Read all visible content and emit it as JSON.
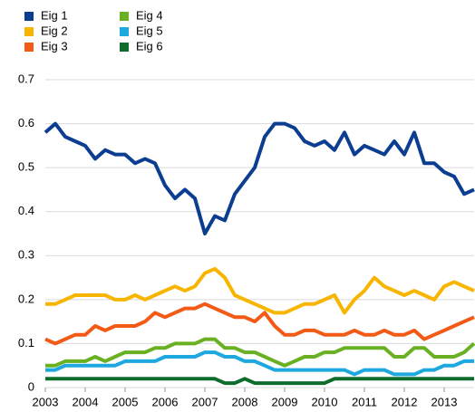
{
  "chart_data": {
    "type": "line",
    "x": [
      2003,
      2003.25,
      2003.5,
      2003.75,
      2004,
      2004.25,
      2004.5,
      2004.75,
      2005,
      2005.25,
      2005.5,
      2005.75,
      2006,
      2006.25,
      2006.5,
      2006.75,
      2007,
      2007.25,
      2007.5,
      2007.75,
      2008,
      2008.25,
      2008.5,
      2008.75,
      2009,
      2009.25,
      2009.5,
      2009.75,
      2010,
      2010.25,
      2010.5,
      2010.75,
      2011,
      2011.25,
      2011.5,
      2011.75,
      2012,
      2012.25,
      2012.5,
      2012.75,
      2013,
      2013.25,
      2013.5,
      2013.75
    ],
    "series": [
      {
        "name": "Eig 1",
        "color": "#0b3d91",
        "values": [
          0.58,
          0.6,
          0.57,
          0.56,
          0.55,
          0.52,
          0.54,
          0.53,
          0.53,
          0.51,
          0.52,
          0.51,
          0.46,
          0.43,
          0.45,
          0.43,
          0.35,
          0.39,
          0.38,
          0.44,
          0.47,
          0.5,
          0.57,
          0.6,
          0.6,
          0.59,
          0.56,
          0.55,
          0.56,
          0.54,
          0.58,
          0.53,
          0.55,
          0.54,
          0.53,
          0.56,
          0.53,
          0.58,
          0.51,
          0.51,
          0.49,
          0.48,
          0.44,
          0.45
        ]
      },
      {
        "name": "Eig 2",
        "color": "#f8b500",
        "values": [
          0.19,
          0.19,
          0.2,
          0.21,
          0.21,
          0.21,
          0.21,
          0.2,
          0.2,
          0.21,
          0.2,
          0.21,
          0.22,
          0.23,
          0.22,
          0.23,
          0.26,
          0.27,
          0.25,
          0.21,
          0.2,
          0.19,
          0.18,
          0.17,
          0.17,
          0.18,
          0.19,
          0.19,
          0.2,
          0.21,
          0.17,
          0.2,
          0.22,
          0.25,
          0.23,
          0.22,
          0.21,
          0.22,
          0.21,
          0.2,
          0.23,
          0.24,
          0.23,
          0.22
        ]
      },
      {
        "name": "Eig 3",
        "color": "#f25a16",
        "values": [
          0.11,
          0.1,
          0.11,
          0.12,
          0.12,
          0.14,
          0.13,
          0.14,
          0.14,
          0.14,
          0.15,
          0.17,
          0.16,
          0.17,
          0.18,
          0.18,
          0.19,
          0.18,
          0.17,
          0.16,
          0.16,
          0.15,
          0.17,
          0.14,
          0.12,
          0.12,
          0.13,
          0.13,
          0.12,
          0.12,
          0.12,
          0.13,
          0.12,
          0.12,
          0.13,
          0.12,
          0.12,
          0.13,
          0.11,
          0.12,
          0.13,
          0.14,
          0.15,
          0.16
        ]
      },
      {
        "name": "Eig 4",
        "color": "#6ab023",
        "values": [
          0.05,
          0.05,
          0.06,
          0.06,
          0.06,
          0.07,
          0.06,
          0.07,
          0.08,
          0.08,
          0.08,
          0.09,
          0.09,
          0.1,
          0.1,
          0.1,
          0.11,
          0.11,
          0.09,
          0.09,
          0.08,
          0.08,
          0.07,
          0.06,
          0.05,
          0.06,
          0.07,
          0.07,
          0.08,
          0.08,
          0.09,
          0.09,
          0.09,
          0.09,
          0.09,
          0.07,
          0.07,
          0.09,
          0.09,
          0.07,
          0.07,
          0.07,
          0.08,
          0.1
        ]
      },
      {
        "name": "Eig 5",
        "color": "#1ea8e0",
        "values": [
          0.04,
          0.04,
          0.05,
          0.05,
          0.05,
          0.05,
          0.05,
          0.05,
          0.06,
          0.06,
          0.06,
          0.06,
          0.07,
          0.07,
          0.07,
          0.07,
          0.08,
          0.08,
          0.07,
          0.07,
          0.06,
          0.06,
          0.05,
          0.04,
          0.04,
          0.04,
          0.04,
          0.04,
          0.04,
          0.04,
          0.04,
          0.03,
          0.04,
          0.04,
          0.04,
          0.03,
          0.03,
          0.03,
          0.04,
          0.04,
          0.05,
          0.05,
          0.06,
          0.06
        ]
      },
      {
        "name": "Eig 6",
        "color": "#0e6d2c",
        "values": [
          0.02,
          0.02,
          0.02,
          0.02,
          0.02,
          0.02,
          0.02,
          0.02,
          0.02,
          0.02,
          0.02,
          0.02,
          0.02,
          0.02,
          0.02,
          0.02,
          0.02,
          0.02,
          0.01,
          0.01,
          0.02,
          0.01,
          0.01,
          0.01,
          0.01,
          0.01,
          0.01,
          0.01,
          0.01,
          0.02,
          0.02,
          0.02,
          0.02,
          0.02,
          0.02,
          0.02,
          0.02,
          0.02,
          0.02,
          0.02,
          0.02,
          0.02,
          0.02,
          0.02
        ]
      }
    ],
    "xlim": [
      2003,
      2013.75
    ],
    "xticks": [
      2003,
      2004,
      2005,
      2006,
      2007,
      2008,
      2009,
      2010,
      2011,
      2012,
      2013
    ],
    "ylim": [
      0,
      0.7
    ],
    "yticks": [
      0,
      0.1,
      0.2,
      0.3,
      0.4,
      0.5,
      0.6,
      0.7
    ],
    "grid": true
  }
}
